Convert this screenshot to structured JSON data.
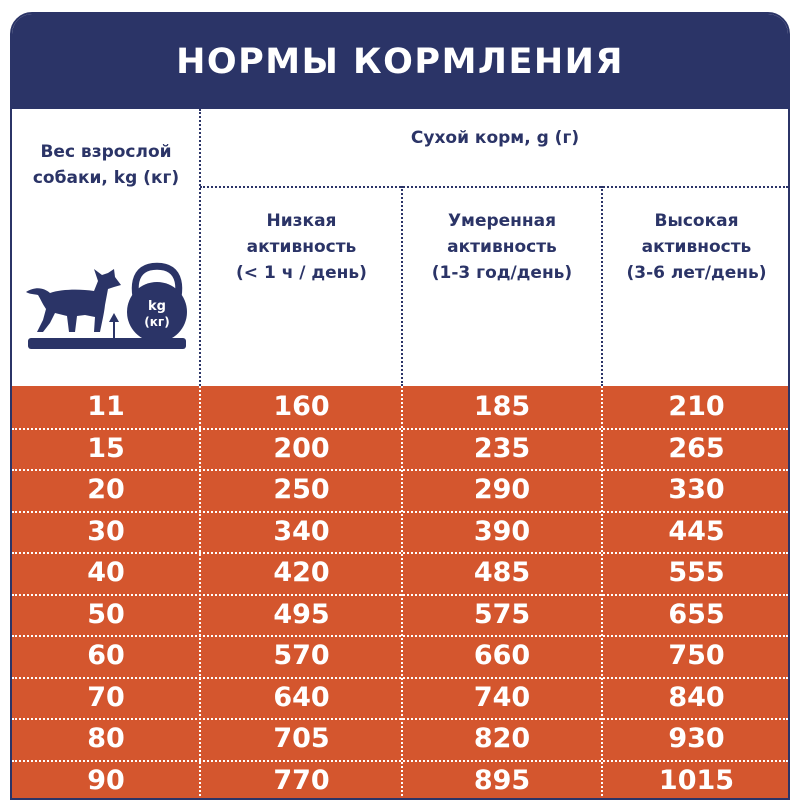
{
  "title": "НОРМЫ КОРМЛЕНИЯ",
  "header": {
    "weight_label": [
      "Вес взрослой",
      "собаки, kg (кг)"
    ],
    "dry_food_label": "Сухой корм, g (г)",
    "activity": [
      {
        "lines": [
          "Низкая",
          "активность",
          "(< 1 ч / день)"
        ]
      },
      {
        "lines": [
          "Умеренная",
          "активность",
          "(1-3 год/день)"
        ]
      },
      {
        "lines": [
          "Высокая",
          "активность",
          "(3-6 лет/день)"
        ]
      }
    ],
    "icon_text": {
      "unit_en": "kg",
      "unit_ru": "(кг)"
    }
  },
  "table": {
    "rows": [
      [
        "11",
        "160",
        "185",
        "210"
      ],
      [
        "15",
        "200",
        "235",
        "265"
      ],
      [
        "20",
        "250",
        "290",
        "330"
      ],
      [
        "30",
        "340",
        "390",
        "445"
      ],
      [
        "40",
        "420",
        "485",
        "555"
      ],
      [
        "50",
        "495",
        "575",
        "655"
      ],
      [
        "60",
        "570",
        "660",
        "750"
      ],
      [
        "70",
        "640",
        "740",
        "840"
      ],
      [
        "80",
        "705",
        "820",
        "930"
      ],
      [
        "90",
        "770",
        "895",
        "1015"
      ]
    ]
  },
  "colors": {
    "navy": "#2b3467",
    "orange": "#d4562e",
    "white": "#ffffff"
  },
  "icons": [
    "dog-icon",
    "kettlebell-icon",
    "arrow-up-icon",
    "scale-base-icon"
  ]
}
